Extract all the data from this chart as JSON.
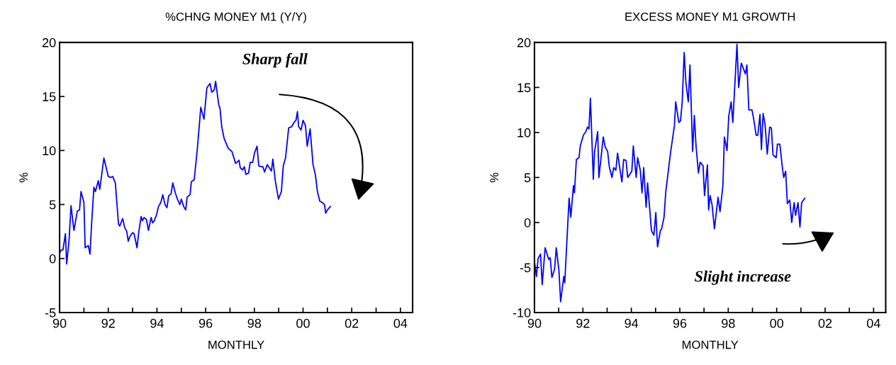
{
  "chart_data": [
    {
      "type": "line",
      "title": "%CHNG MONEY M1 (Y/Y)",
      "xlabel": "MONTHLY",
      "ylabel": "%",
      "annotations": [
        "Sharp fall"
      ],
      "series": [
        {
          "color": "#0000ff",
          "x": [
            1990.0,
            1990.07,
            1990.14,
            1990.24,
            1990.29,
            1990.39,
            1990.47,
            1990.59,
            1990.73,
            1990.82,
            1990.88,
            1991.0,
            1991.05,
            1991.18,
            1991.25,
            1991.31,
            1991.41,
            1991.47,
            1991.59,
            1991.65,
            1991.82,
            1992.0,
            1992.1,
            1992.18,
            1992.29,
            1992.42,
            1992.47,
            1992.59,
            1992.67,
            1992.76,
            1992.82,
            1992.88,
            1993.0,
            1993.06,
            1993.18,
            1993.25,
            1993.35,
            1993.4,
            1993.47,
            1993.57,
            1993.65,
            1993.76,
            1993.82,
            1993.89,
            1993.99,
            1994.06,
            1994.16,
            1994.24,
            1994.33,
            1994.41,
            1994.48,
            1994.58,
            1994.65,
            1994.75,
            1994.84,
            1994.94,
            1995.0,
            1995.1,
            1995.18,
            1995.24,
            1995.36,
            1995.41,
            1995.53,
            1995.66,
            1995.8,
            1995.93,
            1996.05,
            1996.18,
            1996.25,
            1996.35,
            1996.41,
            1996.54,
            1996.59,
            1996.66,
            1996.76,
            1996.93,
            1997.08,
            1997.23,
            1997.37,
            1997.42,
            1997.52,
            1997.59,
            1997.65,
            1997.76,
            1997.83,
            1997.93,
            1998.01,
            1998.11,
            1998.18,
            1998.25,
            1998.35,
            1998.42,
            1998.53,
            1998.7,
            1998.76,
            1998.86,
            1998.99,
            1999.11,
            1999.19,
            1999.28,
            1999.41,
            1999.53,
            1999.63,
            1999.71,
            1999.77,
            1999.82,
            1999.92,
            2000.0,
            2000.1,
            2000.17,
            2000.29,
            2000.41,
            2000.51,
            2000.59,
            2000.69,
            2000.78,
            2000.88,
            2000.93,
            2001.0,
            2001.12
          ],
          "values": [
            0.5,
            0.8,
            0.8,
            2.3,
            -0.5,
            1.7,
            4.9,
            2.6,
            4.4,
            4.5,
            6.2,
            5.2,
            1.0,
            1.2,
            0.4,
            3.0,
            6.6,
            6.2,
            7.2,
            6.4,
            9.3,
            7.6,
            7.5,
            7.6,
            7.0,
            3.2,
            3.0,
            3.7,
            2.9,
            2.5,
            1.6,
            2.0,
            2.4,
            2.3,
            1.0,
            2.4,
            3.9,
            3.5,
            3.8,
            3.6,
            2.6,
            3.8,
            3.3,
            3.5,
            4.1,
            4.8,
            5.2,
            5.9,
            5.0,
            4.7,
            5.8,
            6.0,
            7.0,
            6.1,
            5.5,
            5.0,
            5.5,
            4.8,
            4.5,
            5.7,
            5.9,
            7.1,
            7.3,
            10.2,
            14.0,
            12.9,
            15.8,
            16.2,
            15.4,
            15.6,
            16.4,
            14.2,
            13.9,
            12.2,
            11.1,
            10.2,
            9.9,
            8.8,
            9.1,
            8.4,
            8.2,
            8.5,
            7.8,
            7.9,
            8.9,
            8.9,
            9.8,
            10.4,
            8.6,
            8.5,
            8.5,
            8.0,
            8.7,
            8.1,
            9.2,
            7.2,
            5.5,
            6.2,
            8.6,
            9.3,
            12.1,
            12.2,
            12.6,
            12.8,
            13.6,
            12.2,
            11.9,
            12.8,
            12.3,
            10.4,
            12.0,
            8.7,
            7.7,
            6.2,
            5.3,
            5.2,
            5.0,
            4.2,
            4.5,
            4.8
          ]
        }
      ],
      "xlim": [
        1990,
        2004.5
      ],
      "xticks": [
        {
          "value": 1990,
          "label": "90"
        },
        {
          "value": 1991,
          "label": null
        },
        {
          "value": 1992,
          "label": "92"
        },
        {
          "value": 1993,
          "label": null
        },
        {
          "value": 1994,
          "label": "94"
        },
        {
          "value": 1995,
          "label": null
        },
        {
          "value": 1996,
          "label": "96"
        },
        {
          "value": 1997,
          "label": null
        },
        {
          "value": 1998,
          "label": "98"
        },
        {
          "value": 1999,
          "label": null
        },
        {
          "value": 2000,
          "label": "00"
        },
        {
          "value": 2001,
          "label": null
        },
        {
          "value": 2002,
          "label": "02"
        },
        {
          "value": 2003,
          "label": null
        },
        {
          "value": 2004,
          "label": "04"
        }
      ],
      "ylim": [
        -5,
        20
      ],
      "yticks": [
        -5,
        0,
        5,
        10,
        15,
        20
      ],
      "grid": false,
      "legend": false
    },
    {
      "type": "line",
      "title": "EXCESS MONEY M1 GROWTH",
      "xlabel": "MONTHLY",
      "ylabel": "%",
      "annotations": [
        "Slight increase"
      ],
      "series": [
        {
          "color": "#0000ff",
          "x": [
            1990.0,
            1990.08,
            1990.15,
            1990.25,
            1990.32,
            1990.44,
            1990.59,
            1990.65,
            1990.72,
            1990.83,
            1990.9,
            1991.01,
            1991.08,
            1991.21,
            1991.25,
            1991.43,
            1991.5,
            1991.61,
            1991.65,
            1991.73,
            1991.84,
            1991.89,
            1992.02,
            1992.12,
            1992.19,
            1992.25,
            1992.31,
            1992.43,
            1992.48,
            1992.61,
            1992.66,
            1992.84,
            1992.92,
            1993.02,
            1993.09,
            1993.2,
            1993.27,
            1993.36,
            1993.43,
            1993.61,
            1993.68,
            1993.78,
            1993.85,
            1994.02,
            1994.08,
            1994.2,
            1994.26,
            1994.37,
            1994.44,
            1994.51,
            1994.61,
            1994.67,
            1994.83,
            1994.93,
            1995.01,
            1995.08,
            1995.2,
            1995.25,
            1995.35,
            1995.42,
            1995.62,
            1995.78,
            1995.83,
            1995.96,
            1996.03,
            1996.1,
            1996.18,
            1996.25,
            1996.35,
            1996.42,
            1996.53,
            1996.6,
            1996.67,
            1996.77,
            1996.84,
            1996.96,
            1997.02,
            1997.14,
            1997.19,
            1997.25,
            1997.33,
            1997.43,
            1997.58,
            1997.66,
            1997.78,
            1997.84,
            1997.95,
            1998.02,
            1998.12,
            1998.19,
            1998.29,
            1998.36,
            1998.43,
            1998.54,
            1998.71,
            1998.77,
            1998.85,
            1998.98,
            1999.05,
            1999.15,
            1999.22,
            1999.31,
            1999.37,
            1999.44,
            1999.52,
            1999.61,
            1999.71,
            1999.78,
            1999.85,
            1999.98,
            2000.03,
            2000.13,
            2000.23,
            2000.29,
            2000.37,
            2000.44,
            2000.54,
            2000.62,
            2000.72,
            2000.78,
            2000.88,
            2000.96,
            2001.03,
            2001.16
          ],
          "values": [
            -4.3,
            -6.0,
            -4.0,
            -3.5,
            -6.9,
            -2.8,
            -4.1,
            -3.9,
            -6.1,
            -5.2,
            -2.8,
            -5.3,
            -8.8,
            -6.0,
            -6.7,
            2.7,
            0.6,
            4.1,
            3.3,
            7.0,
            7.2,
            8.5,
            9.7,
            10.1,
            10.6,
            10.4,
            13.8,
            4.8,
            7.8,
            10.1,
            5.0,
            9.5,
            8.4,
            7.9,
            6.2,
            5.0,
            6.1,
            5.8,
            7.7,
            4.5,
            7.0,
            6.9,
            5.0,
            5.7,
            8.5,
            5.0,
            7.2,
            5.8,
            3.3,
            6.1,
            1.7,
            4.4,
            -0.9,
            -1.4,
            1.1,
            -2.7,
            -0.9,
            -0.7,
            0.6,
            3.4,
            7.8,
            10.8,
            13.4,
            11.1,
            11.3,
            13.4,
            18.9,
            15.6,
            13.4,
            17.5,
            7.9,
            11.9,
            8.5,
            5.5,
            6.7,
            6.3,
            3.0,
            6.4,
            1.4,
            3.0,
            2.0,
            -0.7,
            2.8,
            1.2,
            4.1,
            9.5,
            8.0,
            11.8,
            13.4,
            11.1,
            16.2,
            19.8,
            15.0,
            17.7,
            16.5,
            17.5,
            12.5,
            12.5,
            11.5,
            9.7,
            9.7,
            12.0,
            8.1,
            12.1,
            10.9,
            7.6,
            10.6,
            10.5,
            7.5,
            7.2,
            8.7,
            8.7,
            6.2,
            5.0,
            5.7,
            2.1,
            2.5,
            0.0,
            2.2,
            0.8,
            2.2,
            -0.5,
            2.2,
            2.7
          ]
        }
      ],
      "xlim": [
        1990,
        2004.5
      ],
      "xticks": [
        {
          "value": 1990,
          "label": "90"
        },
        {
          "value": 1991,
          "label": null
        },
        {
          "value": 1992,
          "label": "92"
        },
        {
          "value": 1993,
          "label": null
        },
        {
          "value": 1994,
          "label": "94"
        },
        {
          "value": 1995,
          "label": null
        },
        {
          "value": 1996,
          "label": "96"
        },
        {
          "value": 1997,
          "label": null
        },
        {
          "value": 1998,
          "label": "98"
        },
        {
          "value": 1999,
          "label": null
        },
        {
          "value": 2000,
          "label": "00"
        },
        {
          "value": 2001,
          "label": null
        },
        {
          "value": 2002,
          "label": "02"
        },
        {
          "value": 2003,
          "label": null
        },
        {
          "value": 2004,
          "label": "04"
        }
      ],
      "ylim": [
        -10,
        20
      ],
      "yticks": [
        -10,
        -5,
        0,
        5,
        10,
        15,
        20
      ],
      "grid": false,
      "legend": false
    }
  ]
}
